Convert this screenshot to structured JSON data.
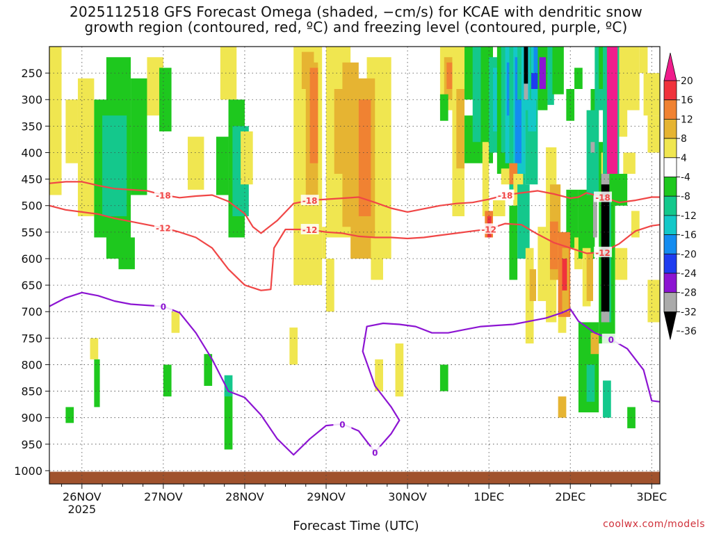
{
  "chart_data": {
    "type": "heatmap",
    "title_line1": "2025112518 GFS Forecast Omega (shaded, −cm/s) for KCAE with dendritic snow",
    "title_line2": "growth region (contoured, red, ºC) and freezing level (contoured, purple, ºC)",
    "xlabel": "Forecast Time (UTC)",
    "credit": "coolwx.com/models",
    "x_ticks": [
      "26NOV",
      "27NOV",
      "28NOV",
      "29NOV",
      "30NOV",
      "1DEC",
      "2DEC",
      "3DEC"
    ],
    "x_tick_sub": "2025",
    "x_range_days": [
      -0.4,
      7.1
    ],
    "y_ticks": [
      250,
      300,
      350,
      400,
      450,
      500,
      550,
      600,
      650,
      700,
      750,
      800,
      850,
      900,
      950,
      1000
    ],
    "y_range_hpa": [
      200,
      1025
    ],
    "colorbar": {
      "labels": [
        "20",
        "16",
        "12",
        "8",
        "4",
        "-4",
        "-8",
        "-12",
        "-16",
        "-20",
        "-24",
        "-28",
        "-32",
        "-36"
      ],
      "colors": [
        "#f01c8c",
        "#f0323c",
        "#f08232",
        "#e6b432",
        "#f0e650",
        "#ffffff",
        "#1ec81e",
        "#14c88c",
        "#14c8c8",
        "#148cf0",
        "#1e3cf0",
        "#8c14d2",
        "#aaaaaa",
        "#000000"
      ]
    },
    "contours": {
      "dgz_minus18": {
        "label": "-18",
        "color": "#f04646",
        "points": [
          [
            -0.4,
            458
          ],
          [
            -0.2,
            455
          ],
          [
            0.0,
            455
          ],
          [
            0.2,
            462
          ],
          [
            0.4,
            468
          ],
          [
            0.6,
            470
          ],
          [
            0.8,
            472
          ],
          [
            1.0,
            480
          ],
          [
            1.2,
            485
          ],
          [
            1.4,
            482
          ],
          [
            1.6,
            480
          ],
          [
            1.8,
            492
          ],
          [
            2.0,
            515
          ],
          [
            2.1,
            540
          ],
          [
            2.2,
            552
          ],
          [
            2.4,
            528
          ],
          [
            2.6,
            496
          ],
          [
            2.8,
            490
          ],
          [
            3.0,
            488
          ],
          [
            3.2,
            486
          ],
          [
            3.4,
            484
          ],
          [
            3.6,
            494
          ],
          [
            3.8,
            505
          ],
          [
            4.0,
            512
          ],
          [
            4.2,
            506
          ],
          [
            4.4,
            500
          ],
          [
            4.6,
            496
          ],
          [
            4.8,
            494
          ],
          [
            5.0,
            488
          ],
          [
            5.2,
            480
          ],
          [
            5.4,
            476
          ],
          [
            5.6,
            472
          ],
          [
            5.8,
            478
          ],
          [
            6.0,
            486
          ],
          [
            6.1,
            484
          ],
          [
            6.2,
            476
          ],
          [
            6.4,
            484
          ],
          [
            6.6,
            494
          ],
          [
            6.8,
            490
          ],
          [
            7.0,
            484
          ],
          [
            7.1,
            484
          ]
        ]
      },
      "dgz_minus12": {
        "label": "-12",
        "color": "#f04646",
        "points": [
          [
            -0.4,
            500
          ],
          [
            -0.2,
            508
          ],
          [
            0.0,
            512
          ],
          [
            0.2,
            516
          ],
          [
            0.4,
            524
          ],
          [
            0.6,
            530
          ],
          [
            0.8,
            536
          ],
          [
            1.0,
            542
          ],
          [
            1.2,
            550
          ],
          [
            1.4,
            560
          ],
          [
            1.6,
            580
          ],
          [
            1.8,
            620
          ],
          [
            2.0,
            650
          ],
          [
            2.2,
            660
          ],
          [
            2.32,
            658
          ],
          [
            2.36,
            580
          ],
          [
            2.5,
            545
          ],
          [
            2.8,
            545
          ],
          [
            3.0,
            550
          ],
          [
            3.2,
            552
          ],
          [
            3.4,
            558
          ],
          [
            3.6,
            560
          ],
          [
            3.8,
            560
          ],
          [
            4.0,
            562
          ],
          [
            4.2,
            560
          ],
          [
            4.4,
            556
          ],
          [
            4.6,
            552
          ],
          [
            4.8,
            548
          ],
          [
            5.0,
            544
          ],
          [
            5.2,
            534
          ],
          [
            5.4,
            536
          ],
          [
            5.6,
            554
          ],
          [
            5.8,
            570
          ],
          [
            6.0,
            580
          ],
          [
            6.2,
            590
          ],
          [
            6.4,
            588
          ],
          [
            6.6,
            572
          ],
          [
            6.8,
            548
          ],
          [
            7.0,
            538
          ],
          [
            7.1,
            536
          ]
        ]
      },
      "freezing": {
        "label": "0",
        "color": "#8c14d2",
        "points": [
          [
            -0.4,
            690
          ],
          [
            -0.2,
            674
          ],
          [
            0.0,
            664
          ],
          [
            0.2,
            670
          ],
          [
            0.4,
            680
          ],
          [
            0.6,
            686
          ],
          [
            0.8,
            688
          ],
          [
            1.0,
            690
          ],
          [
            1.2,
            702
          ],
          [
            1.4,
            740
          ],
          [
            1.6,
            790
          ],
          [
            1.8,
            850
          ],
          [
            2.0,
            862
          ],
          [
            2.2,
            895
          ],
          [
            2.4,
            940
          ],
          [
            2.6,
            970
          ],
          [
            2.8,
            940
          ],
          [
            3.0,
            915
          ],
          [
            3.2,
            912
          ],
          [
            3.4,
            925
          ],
          [
            3.6,
            965
          ],
          [
            3.8,
            930
          ],
          [
            3.9,
            905
          ],
          [
            3.8,
            880
          ],
          [
            3.6,
            840
          ],
          [
            3.45,
            775
          ],
          [
            3.5,
            728
          ],
          [
            3.7,
            722
          ],
          [
            3.9,
            724
          ],
          [
            4.1,
            728
          ],
          [
            4.3,
            740
          ],
          [
            4.5,
            740
          ],
          [
            4.7,
            734
          ],
          [
            4.9,
            728
          ],
          [
            5.1,
            726
          ],
          [
            5.3,
            724
          ],
          [
            5.5,
            718
          ],
          [
            5.7,
            712
          ],
          [
            5.9,
            702
          ],
          [
            6.0,
            695
          ],
          [
            6.1,
            718
          ],
          [
            6.3,
            740
          ],
          [
            6.5,
            752
          ],
          [
            6.7,
            770
          ],
          [
            6.9,
            810
          ],
          [
            7.0,
            868
          ],
          [
            7.1,
            870
          ]
        ]
      }
    }
  }
}
